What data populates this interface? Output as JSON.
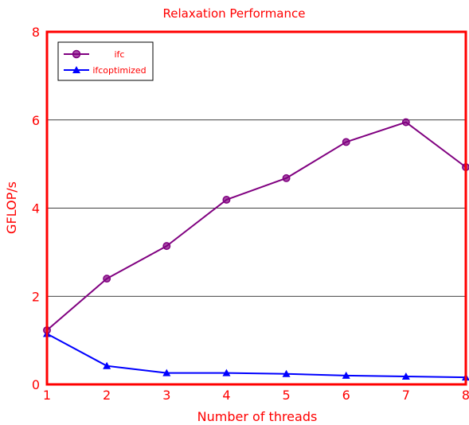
{
  "chart_data": {
    "type": "line",
    "title": "Relaxation Performance",
    "xlabel": "Number of threads",
    "ylabel": "GFLOP/s",
    "x": [
      1,
      2,
      3,
      4,
      5,
      6,
      7,
      8
    ],
    "xlim": [
      1,
      8
    ],
    "ylim": [
      0,
      8
    ],
    "x_ticks": [
      "1",
      "2",
      "3",
      "4",
      "5",
      "6",
      "7",
      "8"
    ],
    "y_ticks": [
      "0",
      "2",
      "4",
      "6",
      "8"
    ],
    "grid": "horizontal",
    "legend_position": "top-left",
    "series": [
      {
        "name": "ifc",
        "color": "#800080",
        "marker": "circle",
        "values": [
          1.23,
          2.4,
          3.14,
          4.19,
          4.68,
          5.5,
          5.95,
          4.93
        ]
      },
      {
        "name": "ifcoptimized",
        "color": "#0000ff",
        "marker": "triangle",
        "values": [
          1.15,
          0.42,
          0.26,
          0.26,
          0.24,
          0.2,
          0.18,
          0.16
        ]
      }
    ],
    "colors": {
      "text": "#ff0000",
      "frame": "#ff0000",
      "grid": "#000000"
    }
  }
}
